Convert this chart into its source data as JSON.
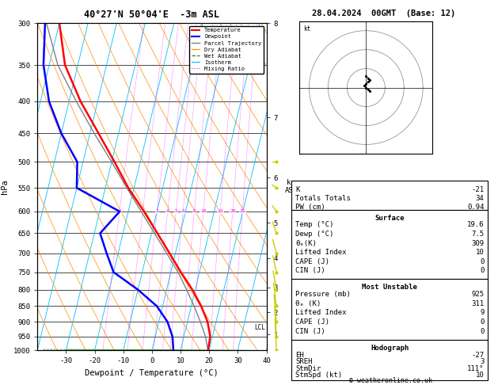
{
  "title_left": "40°27'N 50°04'E  -3m ASL",
  "title_right": "28.04.2024  00GMT  (Base: 12)",
  "xlabel": "Dewpoint / Temperature (°C)",
  "ylabel_left": "hPa",
  "pressure_levels": [
    300,
    350,
    400,
    450,
    500,
    550,
    600,
    650,
    700,
    750,
    800,
    850,
    900,
    950,
    1000
  ],
  "km_ticks": [
    1,
    2,
    3,
    4,
    5,
    6,
    7,
    8
  ],
  "km_pressures": [
    908,
    795,
    683,
    572,
    462,
    352,
    244,
    138
  ],
  "color_temp": "#ff0000",
  "color_dewp": "#0000ff",
  "color_parcel": "#808080",
  "color_dry_adiabat": "#ff8c00",
  "color_wet_adiabat": "#008000",
  "color_isotherm": "#00bfff",
  "color_mixing": "#ff00ff",
  "color_wind": "#cccc00",
  "background": "#ffffff",
  "temp_profile_T": [
    19.6,
    19.2,
    17.0,
    13.5,
    9.0,
    3.5,
    -2.0,
    -8.0,
    -14.5,
    -22.0,
    -29.0,
    -37.0,
    -46.0,
    -54.5,
    -60.0
  ],
  "temp_profile_p": [
    1000,
    950,
    900,
    850,
    800,
    750,
    700,
    650,
    600,
    550,
    500,
    450,
    400,
    350,
    300
  ],
  "dewp_profile_T": [
    7.5,
    6.0,
    3.0,
    -2.0,
    -10.0,
    -20.0,
    -24.0,
    -28.0,
    -23.0,
    -40.0,
    -42.0,
    -50.0,
    -57.0,
    -62.0,
    -65.0
  ],
  "dewp_profile_p": [
    1000,
    950,
    900,
    850,
    800,
    750,
    700,
    650,
    600,
    550,
    500,
    450,
    400,
    350,
    300
  ],
  "parcel_T": [
    19.6,
    17.5,
    14.5,
    11.0,
    7.0,
    2.5,
    -3.0,
    -9.0,
    -15.5,
    -22.5,
    -30.0,
    -38.5,
    -47.5,
    -57.0,
    -64.5
  ],
  "parcel_p": [
    1000,
    950,
    900,
    850,
    800,
    750,
    700,
    650,
    600,
    550,
    500,
    450,
    400,
    350,
    300
  ],
  "skew_factor": 23.0,
  "lcl_pressure": 920,
  "mixing_ratio_values": [
    1,
    2,
    3,
    4,
    5,
    6,
    8,
    10,
    15,
    20,
    25
  ],
  "stats_K": "-21",
  "stats_TT": "34",
  "stats_PW": "0.94",
  "surf_temp": "19.6",
  "surf_dewp": "7.5",
  "surf_thetae": "309",
  "surf_li": "10",
  "surf_cape": "0",
  "surf_cin": "0",
  "mu_pres": "925",
  "mu_thetae": "311",
  "mu_li": "9",
  "mu_cape": "0",
  "mu_cin": "0",
  "hodo_eh": "-27",
  "hodo_sreh": "3",
  "hodo_stmdir": "111°",
  "hodo_stmspd": "10"
}
